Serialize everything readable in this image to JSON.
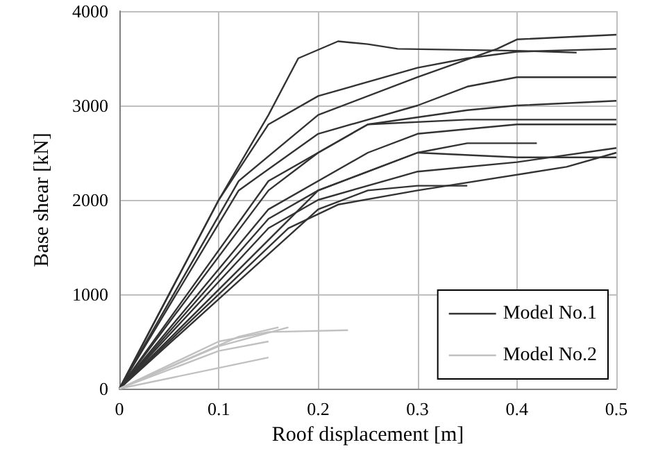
{
  "chart_data": {
    "type": "line",
    "xlabel": "Roof displacement [m]",
    "ylabel": "Base shear [kN]",
    "xlim": [
      0,
      0.5
    ],
    "xticks": [
      0,
      0.1,
      0.2,
      0.3,
      0.4,
      0.5
    ],
    "ylim": [
      0,
      4000
    ],
    "yticks": [
      0,
      1000,
      2000,
      3000,
      4000
    ],
    "grid": true,
    "legend": "bottom right",
    "marker": "none",
    "line_style": "solid",
    "series": [
      {
        "name": "Model No.1",
        "color": "#333333",
        "x": [
          0,
          0.1,
          0.15,
          0.18,
          0.22,
          0.25,
          0.28,
          0.4,
          0.46
        ],
        "values": [
          0,
          2000,
          2900,
          3500,
          3680,
          3650,
          3600,
          3580,
          3560
        ]
      },
      {
        "color": "#333333",
        "x": [
          0,
          0.1,
          0.15,
          0.2,
          0.3,
          0.35,
          0.4,
          0.5
        ],
        "values": [
          0,
          2000,
          2800,
          3100,
          3400,
          3500,
          3570,
          3600
        ]
      },
      {
        "color": "#333333",
        "x": [
          0,
          0.12,
          0.2,
          0.3,
          0.38,
          0.4,
          0.5
        ],
        "values": [
          0,
          2200,
          2900,
          3300,
          3600,
          3700,
          3750
        ]
      },
      {
        "color": "#333333",
        "x": [
          0,
          0.12,
          0.2,
          0.3,
          0.35,
          0.4,
          0.5
        ],
        "values": [
          0,
          2100,
          2700,
          3000,
          3200,
          3300,
          3300
        ]
      },
      {
        "color": "#333333",
        "x": [
          0,
          0.15,
          0.25,
          0.35,
          0.4,
          0.5
        ],
        "values": [
          0,
          2200,
          2800,
          2950,
          3000,
          3050
        ]
      },
      {
        "color": "#333333",
        "x": [
          0,
          0.15,
          0.2,
          0.25,
          0.35,
          0.5
        ],
        "values": [
          0,
          2100,
          2500,
          2800,
          2850,
          2850
        ]
      },
      {
        "color": "#333333",
        "x": [
          0,
          0.15,
          0.25,
          0.3,
          0.4,
          0.5
        ],
        "values": [
          0,
          1900,
          2500,
          2700,
          2800,
          2800
        ]
      },
      {
        "color": "#333333",
        "x": [
          0,
          0.15,
          0.2,
          0.3,
          0.4,
          0.5
        ],
        "values": [
          0,
          1800,
          2100,
          2500,
          2450,
          2450
        ]
      },
      {
        "color": "#333333",
        "x": [
          0,
          0.15,
          0.2,
          0.3,
          0.4,
          0.5
        ],
        "values": [
          0,
          1700,
          2000,
          2300,
          2400,
          2550
        ]
      },
      {
        "color": "#333333",
        "x": [
          0,
          0.2,
          0.25,
          0.3,
          0.35
        ],
        "values": [
          0,
          1900,
          2100,
          2150,
          2150
        ]
      },
      {
        "color": "#333333",
        "x": [
          0,
          0.2,
          0.3,
          0.35,
          0.42
        ],
        "values": [
          0,
          2100,
          2500,
          2600,
          2600
        ]
      },
      {
        "color": "#333333",
        "x": [
          0,
          0.17,
          0.22,
          0.3,
          0.45,
          0.5
        ],
        "values": [
          0,
          1700,
          1950,
          2100,
          2350,
          2500
        ]
      },
      {
        "name": "Model No.2",
        "color": "#c0c0c0",
        "x": [
          0,
          0.1,
          0.15,
          0.23
        ],
        "values": [
          0,
          500,
          600,
          620
        ]
      },
      {
        "color": "#c0c0c0",
        "x": [
          0,
          0.1,
          0.17
        ],
        "values": [
          0,
          450,
          650
        ]
      },
      {
        "color": "#c0c0c0",
        "x": [
          0,
          0.1,
          0.15
        ],
        "values": [
          0,
          400,
          500
        ]
      },
      {
        "color": "#c0c0c0",
        "x": [
          0,
          0.15
        ],
        "values": [
          0,
          330
        ]
      },
      {
        "color": "#c0c0c0",
        "x": [
          0,
          0.12,
          0.16
        ],
        "values": [
          0,
          550,
          650
        ]
      }
    ]
  }
}
